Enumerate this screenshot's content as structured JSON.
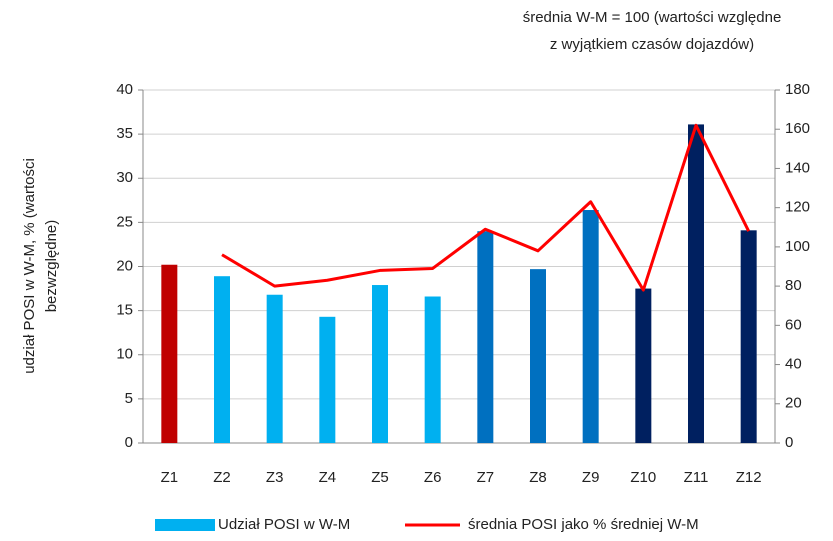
{
  "chart_data": {
    "type": "bar",
    "title": [
      "średnia W-M = 100 (wartości względne",
      "z wyjątkiem czasów dojazdów)"
    ],
    "y_label": [
      "udział POSI w W-M, % (wartości",
      "bezwzględne)"
    ],
    "categories": [
      "Z1",
      "Z2",
      "Z3",
      "Z4",
      "Z5",
      "Z6",
      "Z7",
      "Z8",
      "Z9",
      "Z10",
      "Z11",
      "Z12"
    ],
    "series": [
      {
        "name": "Udział POSI w W-M",
        "type": "bar",
        "color": "#00b0f0",
        "colors": [
          "#c00000",
          "#00b0f0",
          "#00b0f0",
          "#00b0f0",
          "#00b0f0",
          "#00b0f0",
          "#0070c0",
          "#0070c0",
          "#0070c0",
          "#002060",
          "#002060",
          "#002060"
        ],
        "values": [
          20.2,
          18.9,
          16.8,
          14.3,
          17.9,
          16.6,
          24.0,
          19.7,
          26.4,
          17.5,
          36.1,
          24.1
        ]
      },
      {
        "name": "średnia POSI jako % średniej W-M",
        "type": "line",
        "color": "#ff0000",
        "axis": "y2",
        "values": [
          null,
          96,
          80,
          83,
          88,
          89,
          109,
          98,
          123,
          78,
          162,
          108
        ]
      }
    ],
    "ylim": [
      0,
      40
    ],
    "yticks": [
      0,
      5,
      10,
      15,
      20,
      25,
      30,
      35,
      40
    ],
    "y2lim": [
      0,
      180
    ],
    "y2ticks": [
      0,
      20,
      40,
      60,
      80,
      100,
      120,
      140,
      160,
      180
    ],
    "grid": true,
    "legend": "bottom"
  }
}
